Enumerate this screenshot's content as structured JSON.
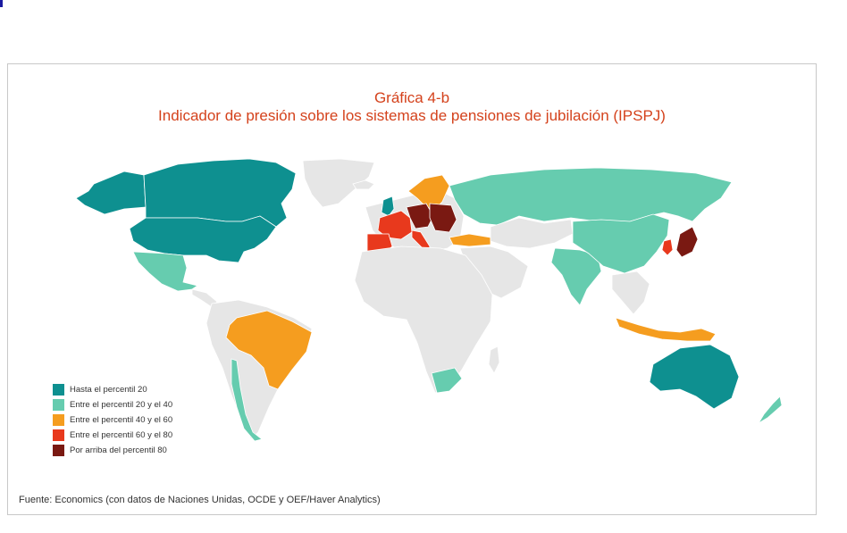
{
  "title": "Gráfica 4-b",
  "subtitle": "Indicador de presión sobre los sistemas de pensiones de jubilación (IPSPJ)",
  "legend": [
    {
      "label": "Hasta el percentil 20",
      "color": "#0e9090"
    },
    {
      "label": "Entre el percentil 20 y el 40",
      "color": "#66ccaf"
    },
    {
      "label": "Entre el percentil 40 y el 60",
      "color": "#f59d1f"
    },
    {
      "label": "Entre el percentil 60 y el 80",
      "color": "#e8391d"
    },
    {
      "label": "Por arriba del percentil 80",
      "color": "#7a1912"
    }
  ],
  "no_data_color": "#e6e6e6",
  "source": "Fuente: Economics (con datos de Naciones Unidas, OCDE y OEF/Haver Analytics)"
}
